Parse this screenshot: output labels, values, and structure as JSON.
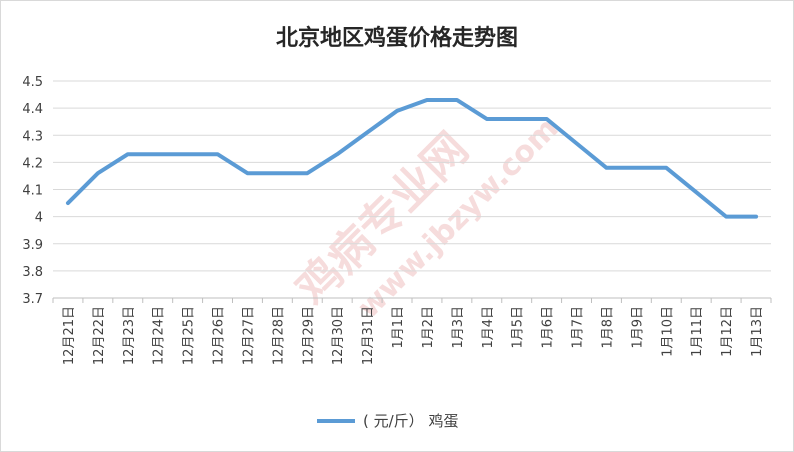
{
  "chart_data": {
    "type": "line",
    "title": "北京地区鸡蛋价格走势图",
    "xlabel": "",
    "ylabel": "",
    "categories": [
      "12月21日",
      "12月22日",
      "12月23日",
      "12月24日",
      "12月25日",
      "12月26日",
      "12月27日",
      "12月28日",
      "12月29日",
      "12月30日",
      "12月31日",
      "1月1日",
      "1月2日",
      "1月3日",
      "1月4日",
      "1月5日",
      "1月6日",
      "1月7日",
      "1月8日",
      "1月9日",
      "1月10日",
      "1月11日",
      "1月12日",
      "1月13日"
    ],
    "series": [
      {
        "name": "( 元/斤） 鸡蛋",
        "color": "#5b9bd5",
        "values": [
          4.05,
          4.16,
          4.23,
          4.23,
          4.23,
          4.23,
          4.16,
          4.16,
          4.16,
          4.23,
          4.31,
          4.39,
          4.43,
          4.43,
          4.36,
          4.36,
          4.36,
          4.27,
          4.18,
          4.18,
          4.18,
          4.09,
          4.0,
          4.0
        ]
      }
    ],
    "ylim": [
      3.7,
      4.5
    ],
    "yticks": [
      "3.7",
      "3.8",
      "3.9",
      "4",
      "4.1",
      "4.2",
      "4.3",
      "4.4",
      "4.5"
    ],
    "grid": true,
    "legend": "bottom"
  },
  "watermark": {
    "brand": "鸡病专业网",
    "url": "www.jbzyw.com"
  },
  "colors": {
    "line": "#5b9bd5",
    "grid": "#d9d9d9",
    "text": "#404040"
  }
}
